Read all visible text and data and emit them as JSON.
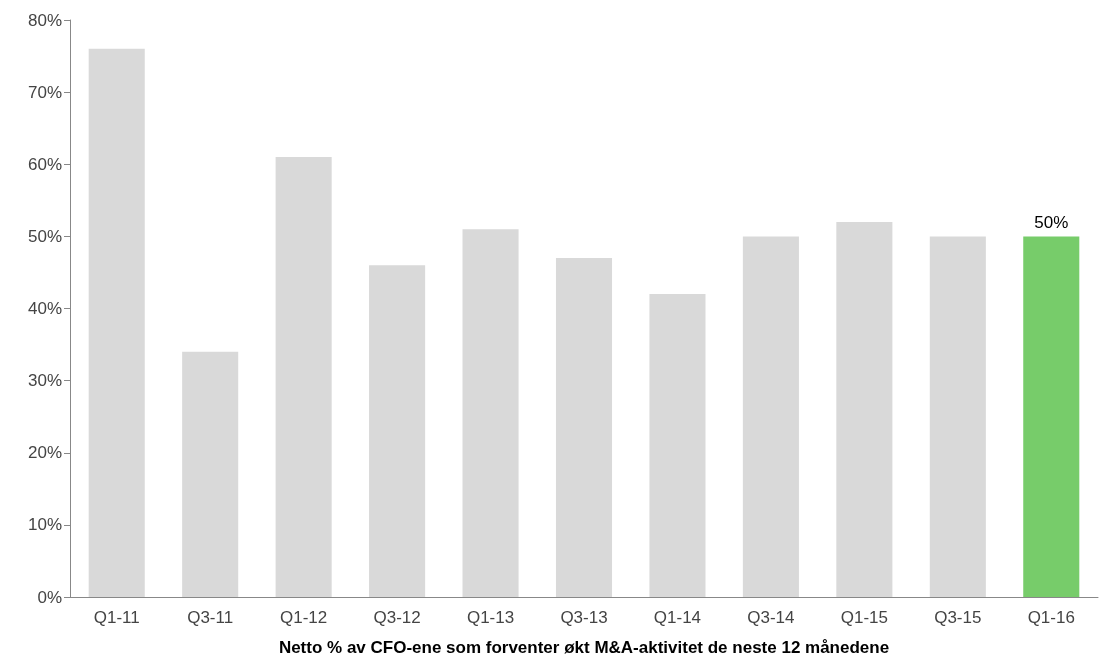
{
  "chart_data": {
    "type": "bar",
    "xlabel": "Netto % av CFO-ene som forventer økt M&A-aktivitet de neste 12 månedene",
    "categories": [
      "Q1-11",
      "Q3-11",
      "Q1-12",
      "Q3-12",
      "Q1-13",
      "Q3-13",
      "Q1-14",
      "Q3-14",
      "Q1-15",
      "Q3-15",
      "Q1-16"
    ],
    "values": [
      76,
      34,
      61,
      46,
      51,
      47,
      42,
      50,
      52,
      50,
      50
    ],
    "colors": [
      "#d9d9d9",
      "#d9d9d9",
      "#d9d9d9",
      "#d9d9d9",
      "#d9d9d9",
      "#d9d9d9",
      "#d9d9d9",
      "#d9d9d9",
      "#d9d9d9",
      "#d9d9d9",
      "#77cc6a"
    ],
    "value_labels": [
      null,
      null,
      null,
      null,
      null,
      null,
      null,
      null,
      null,
      null,
      "50%"
    ],
    "ylim": [
      0,
      80
    ],
    "yticks": [
      {
        "value": 0,
        "label": "0%"
      },
      {
        "value": 10,
        "label": "10%"
      },
      {
        "value": 20,
        "label": "20%"
      },
      {
        "value": 30,
        "label": "30%"
      },
      {
        "value": 40,
        "label": "40%"
      },
      {
        "value": 50,
        "label": "50%"
      },
      {
        "value": 60,
        "label": "60%"
      },
      {
        "value": 70,
        "label": "70%"
      },
      {
        "value": 80,
        "label": "80%"
      }
    ],
    "grid": false
  }
}
